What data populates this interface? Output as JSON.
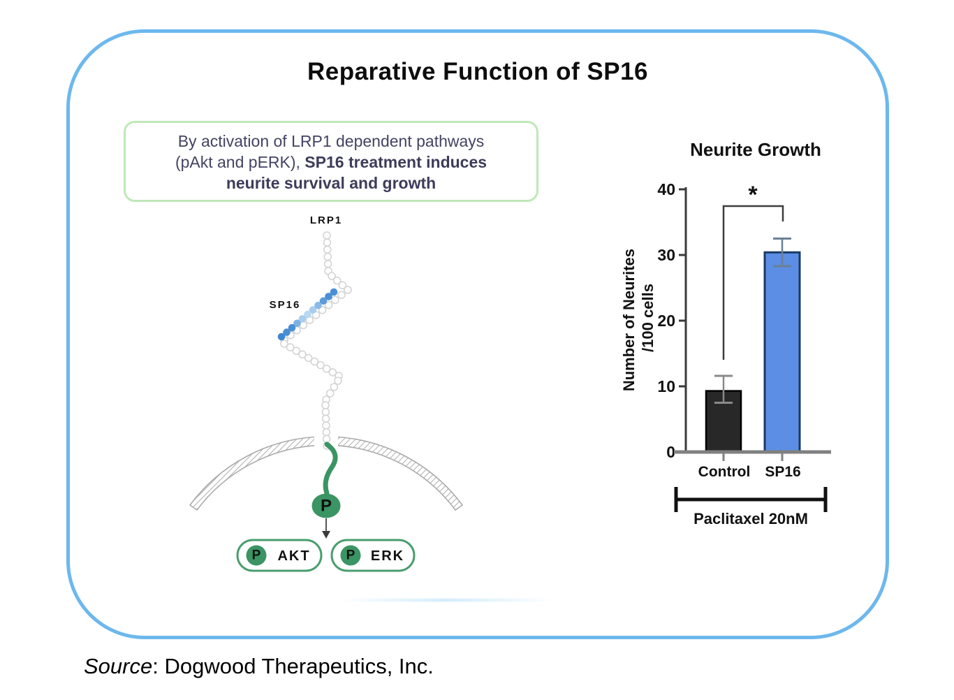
{
  "figure": {
    "title": "Reparative Function of SP16",
    "source_label": "Source",
    "source_rest": ": Dogwood Therapeutics, Inc."
  },
  "callout": {
    "line1": "By activation of LRP1 dependent pathways",
    "line2_normal": "(pAkt and pERK), ",
    "line2_bold": "SP16 treatment induces",
    "line3_bold": "neurite survival and growth"
  },
  "pathway": {
    "receptor_label": "LRP1",
    "ligand_label": "SP16",
    "phospho_symbol": "P",
    "node1_p": "P",
    "node1_label": "AKT",
    "node2_p": "P",
    "node2_label": "ERK"
  },
  "chart_data": {
    "type": "bar",
    "title": "Neurite Growth",
    "ylabel_line1": "Number of Neurites",
    "ylabel_line2": "/100 cells",
    "categories": [
      "Control",
      "SP16"
    ],
    "values": [
      9.3,
      30.4
    ],
    "error_high": [
      11.6,
      32.5
    ],
    "error_low": [
      7.5,
      28.3
    ],
    "bar_fill": [
      "#282828",
      "#5b8ee4"
    ],
    "bar_stroke": [
      "#000000",
      "#1b3a66"
    ],
    "error_color": [
      "#8a8a8a",
      "#6b8096"
    ],
    "yticks": [
      0,
      10,
      20,
      30,
      40
    ],
    "ylim": [
      0,
      40
    ],
    "significance_label": "*",
    "group_label": "Paclitaxel 20nM",
    "grid": false,
    "legend": "none"
  },
  "colors": {
    "card_border": "#6cb8ed",
    "callout_border": "#bfe8b8",
    "callout_text": "#434364",
    "green": "#3a9463",
    "pill_green": "#4a9e6e",
    "ligand_blue": "#4a8fd4",
    "bar_blue": "#5b8ee4"
  }
}
